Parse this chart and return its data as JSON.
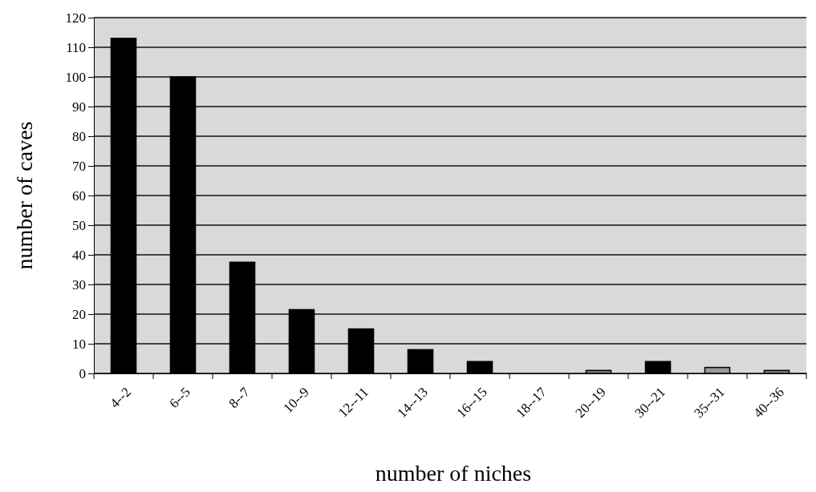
{
  "chart_data": {
    "type": "bar",
    "xlabel": "number of niches",
    "ylabel": "number of caves",
    "categories": [
      "4--2",
      "6--5",
      "8--7",
      "10--9",
      "12--11",
      "14--13",
      "16--15",
      "18--17",
      "20--19",
      "30--21",
      "35--31",
      "40--36"
    ],
    "values": [
      113,
      100,
      37.5,
      21.5,
      15,
      8,
      4,
      0,
      1,
      4,
      2,
      1
    ],
    "colors": [
      "#000000",
      "#000000",
      "#000000",
      "#000000",
      "#000000",
      "#000000",
      "#000000",
      "#000000",
      "#808080",
      "#000000",
      "#999999",
      "#808080"
    ],
    "ylim": [
      0,
      120
    ],
    "yticks": [
      0,
      10,
      20,
      30,
      40,
      50,
      60,
      70,
      80,
      90,
      100,
      110,
      120
    ],
    "grid": "y"
  }
}
